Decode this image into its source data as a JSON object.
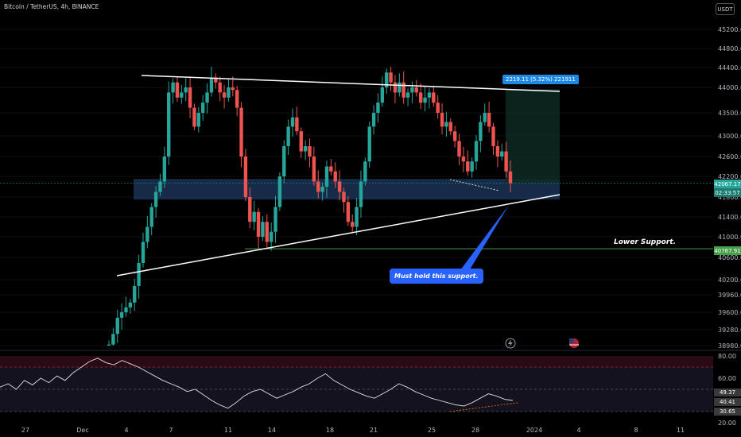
{
  "header": {
    "title": "Bitcoin / TetherUS, 4h, BINANCE",
    "currency_button": "USDT"
  },
  "chart_data": {
    "type": "candlestick",
    "title": "Bitcoin / TetherUS, 4h, BINANCE",
    "price_axis_labels": [
      "45200.00",
      "44800.00",
      "44400.00",
      "44000.00",
      "43500.00",
      "43000.00",
      "42600.00",
      "42200.00",
      "41800.00",
      "41400.00",
      "41000.00",
      "40600.00",
      "40200.00",
      "39960.00",
      "39600.00",
      "39280.00",
      "38980.00"
    ],
    "price_axis_values": [
      45200,
      44800,
      44400,
      44000,
      43500,
      43000,
      42600,
      42200,
      41800,
      41400,
      41000,
      40600,
      40200,
      39960,
      39600,
      39280,
      38980
    ],
    "x_axis_labels": [
      "27",
      "Dec",
      "4",
      "7",
      "11",
      "14",
      "18",
      "21",
      "25",
      "28",
      "2024",
      "4",
      "8",
      "11"
    ],
    "current_price": {
      "label": "42067.17",
      "countdown": "02:33:57",
      "value": 42067.17
    },
    "lower_support": {
      "label": "40767.91",
      "value": 40767.91,
      "text": "Lower Support."
    },
    "measure_label": "2219.11 (5.32%) 221911",
    "callout": "Must hold this support.",
    "trendlines": [
      {
        "kind": "upper-resistance",
        "from": [
          "Dec 4",
          44250
        ],
        "to": [
          "Jan 1",
          43950
        ]
      },
      {
        "kind": "lower-support-trend",
        "from": [
          "Dec 2",
          40300
        ],
        "to": [
          "Jan 1",
          41850
        ]
      }
    ],
    "support_zone": {
      "from": 41750,
      "to": 42150
    },
    "close_series": [
      39000,
      39200,
      39500,
      39600,
      39700,
      39800,
      40100,
      40500,
      40900,
      41200,
      41600,
      41900,
      42100,
      42600,
      43900,
      44100,
      43800,
      43900,
      44000,
      43600,
      43200,
      43500,
      43700,
      43900,
      44200,
      44100,
      43900,
      43800,
      44000,
      43950,
      43600,
      42600,
      41800,
      41300,
      41500,
      41000,
      41300,
      40900,
      41100,
      41600,
      42200,
      42800,
      43200,
      43400,
      43100,
      42700,
      42800,
      42600,
      42100,
      41900,
      42000,
      42400,
      42300,
      42100,
      41900,
      41700,
      41300,
      41200,
      41600,
      42100,
      42500,
      43200,
      43500,
      43700,
      44000,
      44300,
      44100,
      43900,
      44100,
      43800,
      43900,
      44000,
      43900,
      43700,
      43800,
      43900,
      43700,
      43500,
      43200,
      43300,
      43100,
      42900,
      42600,
      42500,
      42300,
      42500,
      42900,
      43300,
      43500,
      43200,
      42800,
      42600,
      42700,
      42300,
      42067
    ],
    "rsi": {
      "labels": [
        "80.00",
        "60.00",
        "49.37",
        "40.41",
        "30.65",
        "20.00"
      ],
      "upper_band": 70,
      "lower_band": 30,
      "values": [
        52,
        55,
        50,
        58,
        54,
        60,
        56,
        62,
        58,
        65,
        70,
        75,
        78,
        74,
        72,
        76,
        73,
        70,
        66,
        62,
        58,
        55,
        52,
        48,
        50,
        45,
        40,
        36,
        33,
        38,
        44,
        48,
        50,
        46,
        42,
        45,
        48,
        52,
        55,
        60,
        64,
        58,
        54,
        50,
        47,
        44,
        42,
        46,
        50,
        55,
        52,
        48,
        45,
        42,
        40,
        38,
        36,
        35,
        38,
        42,
        46,
        44,
        41,
        40
      ]
    },
    "ylim": [
      38900,
      45300
    ]
  }
}
